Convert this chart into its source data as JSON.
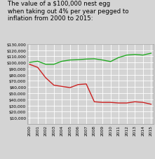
{
  "title": "The value of a $100,000 nest egg\nwhen taking out 4% per year pegged to\ninflation from 2000 to 2015:",
  "years": [
    2000,
    2001,
    2002,
    2003,
    2004,
    2005,
    2006,
    2007,
    2008,
    2009,
    2010,
    2011,
    2012,
    2013,
    2014,
    2015
  ],
  "bonds_y": [
    100000,
    102000,
    97000,
    97000,
    102000,
    104000,
    104500,
    105500,
    106000,
    104000,
    101500,
    108000,
    112000,
    113000,
    112000,
    115000
  ],
  "stocks_y": [
    97000,
    92000,
    75000,
    63000,
    61000,
    59000,
    64000,
    65000,
    36000,
    35000,
    35000,
    34000,
    34000,
    36000,
    35000,
    32000
  ],
  "bonds_color": "#22aa22",
  "stocks_color": "#cc2222",
  "ylim": [
    0,
    130000
  ],
  "yticks": [
    10000,
    20000,
    30000,
    40000,
    50000,
    60000,
    70000,
    80000,
    90000,
    100000,
    110000,
    120000,
    130000
  ],
  "ytick_labels": [
    "$10,000",
    "$20,000",
    "$30,000",
    "$40,000",
    "$50,000",
    "$60,000",
    "$70,000",
    "$80,000",
    "$90,000",
    "$100,000",
    "$110,000",
    "$120,000",
    "$130,000"
  ],
  "bg_color": "#d4d4d4",
  "grid_color": "#ffffff",
  "title_fontsize": 6.2,
  "tick_fontsize": 4.2,
  "legend_fontsize": 5.0,
  "xlim_left": 1999.7,
  "xlim_right": 2015.3
}
